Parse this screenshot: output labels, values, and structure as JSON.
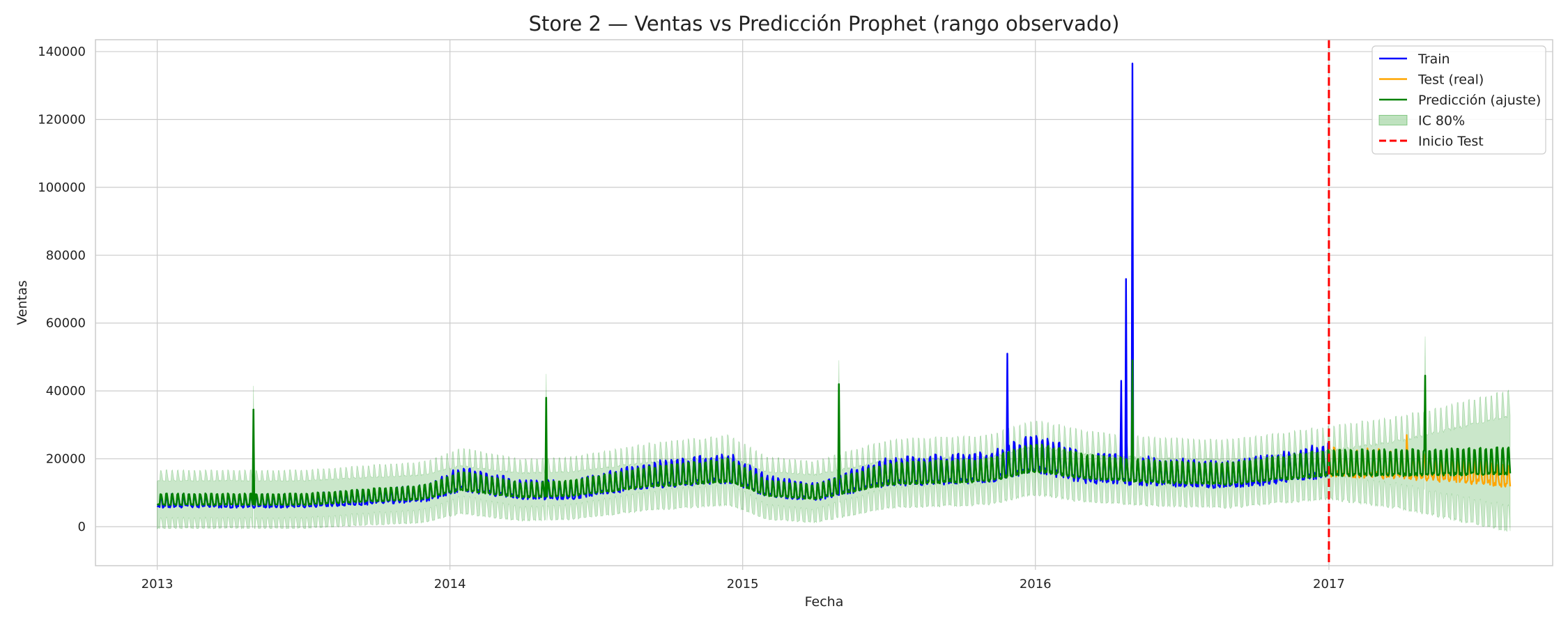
{
  "chart_data": {
    "type": "line",
    "title": "Store 2 — Ventas vs Predicción Prophet (rango observado)",
    "xlabel": "Fecha",
    "ylabel": "Ventas",
    "xlim": [
      "2012-10-16",
      "2017-10-07"
    ],
    "ylim": [
      -11500,
      143500
    ],
    "x_ticks": [
      "2013",
      "2014",
      "2015",
      "2016",
      "2017"
    ],
    "y_ticks": [
      "0",
      "20000",
      "40000",
      "60000",
      "80000",
      "100000",
      "120000",
      "140000"
    ],
    "grid": true,
    "legend_position": "top-right",
    "series": [
      {
        "name": "Train",
        "color": "#0000ff",
        "x_range": [
          "2013-01-01",
          "2016-12-31"
        ],
        "level_points": [
          [
            "2013-01-01",
            7000
          ],
          [
            "2013-07-01",
            7000
          ],
          [
            "2013-12-01",
            9000
          ],
          [
            "2014-01-15",
            13000
          ],
          [
            "2014-04-01",
            10000
          ],
          [
            "2014-06-01",
            10000
          ],
          [
            "2014-09-01",
            14000
          ],
          [
            "2014-12-15",
            16000
          ],
          [
            "2015-02-01",
            11000
          ],
          [
            "2015-04-01",
            9500
          ],
          [
            "2015-07-01",
            15000
          ],
          [
            "2015-11-01",
            16000
          ],
          [
            "2016-01-01",
            20000
          ],
          [
            "2016-03-01",
            16000
          ],
          [
            "2016-06-01",
            15000
          ],
          [
            "2016-09-01",
            14000
          ],
          [
            "2016-12-31",
            18000
          ]
        ],
        "spikes": [
          [
            "2015-11-27",
            51000
          ],
          [
            "2016-04-17",
            43000
          ],
          [
            "2016-04-23",
            73000
          ],
          [
            "2016-05-01",
            136500
          ]
        ]
      },
      {
        "name": "Test (real)",
        "color": "#ffa500",
        "x_range": [
          "2017-01-01",
          "2017-08-15"
        ],
        "level_points": [
          [
            "2017-01-01",
            18000
          ],
          [
            "2017-04-01",
            17000
          ],
          [
            "2017-06-01",
            16000
          ],
          [
            "2017-08-15",
            14000
          ]
        ],
        "spikes": [
          [
            "2017-04-08",
            27000
          ]
        ]
      },
      {
        "name": "Predicción (ajuste)",
        "color": "#008000",
        "x_range": [
          "2013-01-01",
          "2017-08-15"
        ],
        "level_points": [
          [
            "2013-01-01",
            7500
          ],
          [
            "2013-07-01",
            7500
          ],
          [
            "2013-12-01",
            9500
          ],
          [
            "2014-01-15",
            12500
          ],
          [
            "2014-04-01",
            10000
          ],
          [
            "2014-06-01",
            10500
          ],
          [
            "2014-09-01",
            13500
          ],
          [
            "2014-12-15",
            15500
          ],
          [
            "2015-02-01",
            10500
          ],
          [
            "2015-04-01",
            9500
          ],
          [
            "2015-07-01",
            14500
          ],
          [
            "2015-11-01",
            15500
          ],
          [
            "2016-01-01",
            19000
          ],
          [
            "2016-03-01",
            16500
          ],
          [
            "2016-06-01",
            15000
          ],
          [
            "2016-09-01",
            14500
          ],
          [
            "2016-12-31",
            17500
          ],
          [
            "2017-04-01",
            17500
          ],
          [
            "2017-08-15",
            18000
          ]
        ],
        "spikes": [
          [
            "2013-05-01",
            34500
          ],
          [
            "2014-05-01",
            38000
          ],
          [
            "2015-05-01",
            42000
          ],
          [
            "2016-05-01",
            49000
          ],
          [
            "2017-05-01",
            44500
          ]
        ]
      },
      {
        "name": "IC 80%",
        "color": "#2ca02c",
        "type": "band",
        "x_range": [
          "2013-01-01",
          "2017-08-15"
        ],
        "half_width_points": [
          [
            "2013-01-01",
            7000
          ],
          [
            "2016-12-31",
            7000
          ],
          [
            "2017-04-01",
            10000
          ],
          [
            "2017-08-15",
            17000
          ]
        ]
      }
    ],
    "vlines": [
      {
        "name": "Inicio Test",
        "x": "2017-01-01",
        "color": "#ff0000",
        "style": "dashed"
      }
    ]
  }
}
